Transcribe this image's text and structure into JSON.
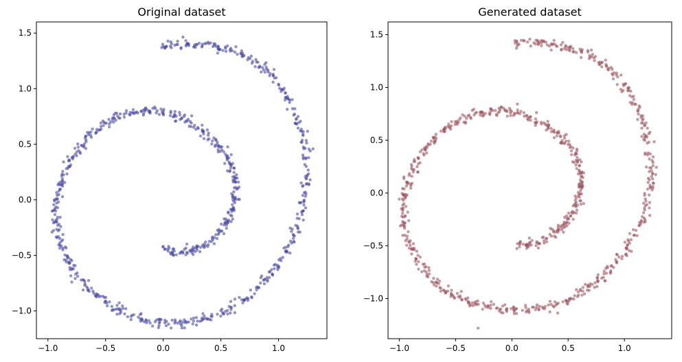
{
  "chart_data": [
    {
      "type": "scatter",
      "title": "Original dataset",
      "xlabel": "",
      "ylabel": "",
      "xlim": [
        -1.1,
        1.42
      ],
      "ylim": [
        -1.25,
        1.6
      ],
      "xticks": [
        -1.0,
        -0.5,
        0.0,
        0.5,
        1.0
      ],
      "xtick_labels": [
        "−1.0",
        "−0.5",
        "0.0",
        "0.5",
        "1.0"
      ],
      "yticks": [
        -1.0,
        -0.5,
        0.0,
        0.5,
        1.0,
        1.5
      ],
      "ytick_labels": [
        "−1.0",
        "−0.5",
        "0.0",
        "0.5",
        "1.0",
        "1.5"
      ],
      "grid": false,
      "color": "#4b4ba3",
      "alpha": 0.6,
      "points": [
        [
          0.0,
          -0.42
        ],
        [
          0.08,
          -0.47
        ],
        [
          0.17,
          -0.48
        ],
        [
          0.26,
          -0.46
        ],
        [
          0.35,
          -0.42
        ],
        [
          0.43,
          -0.36
        ],
        [
          0.5,
          -0.28
        ],
        [
          0.56,
          -0.19
        ],
        [
          0.6,
          -0.09
        ],
        [
          0.62,
          0.01
        ],
        [
          0.63,
          0.11
        ],
        [
          0.62,
          0.21
        ],
        [
          0.59,
          0.31
        ],
        [
          0.54,
          0.41
        ],
        [
          0.47,
          0.5
        ],
        [
          0.39,
          0.58
        ],
        [
          0.3,
          0.65
        ],
        [
          0.2,
          0.71
        ],
        [
          0.1,
          0.76
        ],
        [
          -0.01,
          0.79
        ],
        [
          -0.12,
          0.8
        ],
        [
          -0.23,
          0.79
        ],
        [
          -0.34,
          0.77
        ],
        [
          -0.44,
          0.72
        ],
        [
          -0.54,
          0.66
        ],
        [
          -0.63,
          0.58
        ],
        [
          -0.71,
          0.49
        ],
        [
          -0.78,
          0.39
        ],
        [
          -0.84,
          0.28
        ],
        [
          -0.89,
          0.16
        ],
        [
          -0.92,
          0.04
        ],
        [
          -0.94,
          -0.08
        ],
        [
          -0.93,
          -0.2
        ],
        [
          -0.91,
          -0.33
        ],
        [
          -0.87,
          -0.45
        ],
        [
          -0.82,
          -0.56
        ],
        [
          -0.76,
          -0.67
        ],
        [
          -0.68,
          -0.77
        ],
        [
          -0.59,
          -0.86
        ],
        [
          -0.49,
          -0.93
        ],
        [
          -0.38,
          -0.99
        ],
        [
          -0.27,
          -1.04
        ],
        [
          -0.15,
          -1.08
        ],
        [
          -0.03,
          -1.1
        ],
        [
          0.1,
          -1.11
        ],
        [
          0.22,
          -1.1
        ],
        [
          0.35,
          -1.07
        ],
        [
          0.47,
          -1.03
        ],
        [
          0.59,
          -0.97
        ],
        [
          0.7,
          -0.9
        ],
        [
          0.81,
          -0.81
        ],
        [
          0.9,
          -0.7
        ],
        [
          0.99,
          -0.59
        ],
        [
          1.07,
          -0.46
        ],
        [
          1.13,
          -0.32
        ],
        [
          1.18,
          -0.17
        ],
        [
          1.22,
          -0.02
        ],
        [
          1.24,
          0.14
        ],
        [
          1.24,
          0.3
        ],
        [
          1.22,
          0.46
        ],
        [
          1.19,
          0.62
        ],
        [
          1.14,
          0.77
        ],
        [
          1.08,
          0.91
        ],
        [
          1.0,
          1.04
        ],
        [
          0.91,
          1.15
        ],
        [
          0.81,
          1.24
        ],
        [
          0.7,
          1.3
        ],
        [
          0.58,
          1.35
        ],
        [
          0.46,
          1.38
        ],
        [
          0.34,
          1.4
        ],
        [
          0.22,
          1.4
        ],
        [
          0.1,
          1.39
        ],
        [
          0.0,
          1.38
        ]
      ]
    },
    {
      "type": "scatter",
      "title": "Generated dataset",
      "xlabel": "",
      "ylabel": "",
      "xlim": [
        -1.1,
        1.42
      ],
      "ylim": [
        -1.38,
        1.62
      ],
      "xticks": [
        -1.0,
        -0.5,
        0.0,
        0.5,
        1.0
      ],
      "xtick_labels": [
        "−1.0",
        "−0.5",
        "0.0",
        "0.5",
        "1.0"
      ],
      "yticks": [
        -1.0,
        -0.5,
        0.0,
        0.5,
        1.0,
        1.5
      ],
      "ytick_labels": [
        "−1.0",
        "−0.5",
        "0.0",
        "0.5",
        "1.0",
        "1.5"
      ],
      "grid": false,
      "color": "#9e5660",
      "alpha": 0.6,
      "points": [
        [
          0.05,
          -0.48
        ],
        [
          0.13,
          -0.49
        ],
        [
          0.22,
          -0.47
        ],
        [
          0.31,
          -0.43
        ],
        [
          0.39,
          -0.37
        ],
        [
          0.46,
          -0.3
        ],
        [
          0.52,
          -0.22
        ],
        [
          0.57,
          -0.13
        ],
        [
          0.6,
          -0.04
        ],
        [
          0.62,
          0.06
        ],
        [
          0.62,
          0.16
        ],
        [
          0.6,
          0.26
        ],
        [
          0.56,
          0.36
        ],
        [
          0.5,
          0.46
        ],
        [
          0.43,
          0.54
        ],
        [
          0.35,
          0.61
        ],
        [
          0.26,
          0.67
        ],
        [
          0.16,
          0.72
        ],
        [
          0.05,
          0.76
        ],
        [
          -0.06,
          0.78
        ],
        [
          -0.17,
          0.78
        ],
        [
          -0.28,
          0.76
        ],
        [
          -0.39,
          0.73
        ],
        [
          -0.49,
          0.68
        ],
        [
          -0.59,
          0.61
        ],
        [
          -0.68,
          0.53
        ],
        [
          -0.76,
          0.44
        ],
        [
          -0.83,
          0.33
        ],
        [
          -0.88,
          0.22
        ],
        [
          -0.93,
          0.1
        ],
        [
          -0.96,
          -0.02
        ],
        [
          -0.97,
          -0.15
        ],
        [
          -0.96,
          -0.28
        ],
        [
          -0.93,
          -0.41
        ],
        [
          -0.89,
          -0.53
        ],
        [
          -0.83,
          -0.65
        ],
        [
          -0.76,
          -0.75
        ],
        [
          -0.67,
          -0.85
        ],
        [
          -0.57,
          -0.93
        ],
        [
          -0.46,
          -0.99
        ],
        [
          -0.35,
          -1.04
        ],
        [
          -0.23,
          -1.08
        ],
        [
          -0.1,
          -1.1
        ],
        [
          0.02,
          -1.11
        ],
        [
          0.15,
          -1.1
        ],
        [
          0.27,
          -1.08
        ],
        [
          0.4,
          -1.05
        ],
        [
          0.52,
          -1.0
        ],
        [
          0.63,
          -0.93
        ],
        [
          0.74,
          -0.85
        ],
        [
          0.84,
          -0.76
        ],
        [
          0.93,
          -0.65
        ],
        [
          1.02,
          -0.53
        ],
        [
          1.09,
          -0.4
        ],
        [
          1.15,
          -0.26
        ],
        [
          1.2,
          -0.11
        ],
        [
          1.23,
          0.05
        ],
        [
          1.24,
          0.21
        ],
        [
          1.23,
          0.37
        ],
        [
          1.2,
          0.53
        ],
        [
          1.16,
          0.69
        ],
        [
          1.1,
          0.84
        ],
        [
          1.03,
          0.97
        ],
        [
          0.94,
          1.1
        ],
        [
          0.84,
          1.2
        ],
        [
          0.73,
          1.28
        ],
        [
          0.62,
          1.34
        ],
        [
          0.5,
          1.38
        ],
        [
          0.38,
          1.41
        ],
        [
          0.26,
          1.42
        ],
        [
          0.14,
          1.43
        ],
        [
          0.03,
          1.42
        ],
        [
          -0.3,
          -1.28
        ]
      ]
    }
  ]
}
